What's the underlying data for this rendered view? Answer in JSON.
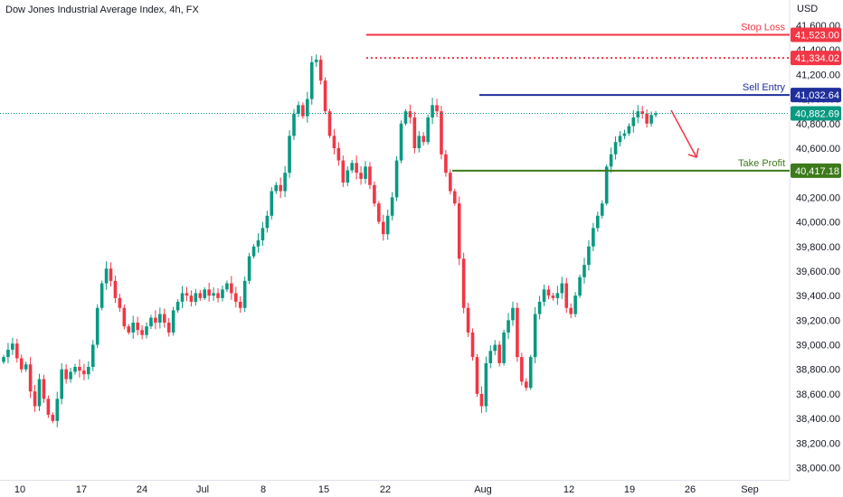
{
  "header": {
    "symbol": "Dow Jones Industrial Average Index",
    "interval": "4h",
    "exchange": "FX",
    "currency": "USD"
  },
  "colors": {
    "up": "#089981",
    "down": "#f23645",
    "stop_loss": "#f23645",
    "sell_entry": "#1f2f9b",
    "take_profit": "#3d7a1b",
    "current_price": "#089981",
    "arrow": "#f23645",
    "axis_text": "#131722"
  },
  "chart_data": {
    "type": "candlestick",
    "title": "Dow Jones Industrial Average Index, 4h, FX",
    "ylabel": "USD",
    "ylim": [
      38000,
      41700
    ],
    "y_ticks": [
      38000,
      38200,
      38400,
      38600,
      38800,
      39000,
      39200,
      39400,
      39600,
      39800,
      40000,
      40200,
      40400,
      40600,
      40800,
      41000,
      41200,
      41400,
      41600
    ],
    "x_ticks": [
      "10",
      "17",
      "24",
      "Jul",
      "8",
      "15",
      "22",
      "Aug",
      "12",
      "19",
      "26",
      "Sep"
    ],
    "levels": [
      {
        "name": "Stop Loss",
        "value": 41523.0,
        "label": "41,523.00"
      },
      {
        "value": 41334.02,
        "label": "41,334.02"
      },
      {
        "name": "Sell Entry",
        "value": 41032.64,
        "label": "41,032.64"
      },
      {
        "value": 40882.69,
        "label": "40,882.69"
      },
      {
        "name": "Take Profit",
        "value": 40417.18,
        "label": "40,417.18"
      }
    ],
    "closes": [
      38900,
      38960,
      39010,
      38890,
      38800,
      38840,
      38620,
      38500,
      38720,
      38560,
      38430,
      38380,
      38560,
      38800,
      38720,
      38780,
      38820,
      38790,
      38760,
      38820,
      39000,
      39300,
      39500,
      39620,
      39520,
      39380,
      39300,
      39150,
      39100,
      39180,
      39120,
      39080,
      39150,
      39220,
      39180,
      39250,
      39180,
      39100,
      39280,
      39350,
      39420,
      39400,
      39350,
      39420,
      39380,
      39450,
      39400,
      39420,
      39380,
      39450,
      39500,
      39420,
      39350,
      39300,
      39520,
      39720,
      39800,
      39850,
      39950,
      40050,
      40250,
      40300,
      40250,
      40400,
      40700,
      40880,
      40950,
      40860,
      41000,
      41300,
      41320,
      41150,
      40900,
      40700,
      40600,
      40500,
      40320,
      40420,
      40480,
      40400,
      40350,
      40450,
      40300,
      40150,
      40000,
      39900,
      40050,
      40200,
      40500,
      40800,
      40900,
      40850,
      40600,
      40700,
      40650,
      40850,
      40950,
      40900,
      40550,
      40400,
      40250,
      40150,
      39700,
      39300,
      39100,
      38900,
      38600,
      38500,
      38850,
      38950,
      39000,
      38850,
      39100,
      39200,
      39300,
      38900,
      38700,
      38650,
      38900,
      39250,
      39350,
      39450,
      39400,
      39380,
      39420,
      39500,
      39300,
      39250,
      39400,
      39550,
      39650,
      39800,
      39950,
      40050,
      40150,
      40450,
      40550,
      40650,
      40700,
      40720,
      40780,
      40850,
      40900,
      40880,
      40800,
      40870,
      40882.69
    ]
  },
  "annotations": {
    "stop_loss_label": "Stop Loss",
    "sell_entry_label": "Sell Entry",
    "take_profit_label": "Take Profit",
    "arrow_icon": "down-right-arrow"
  }
}
